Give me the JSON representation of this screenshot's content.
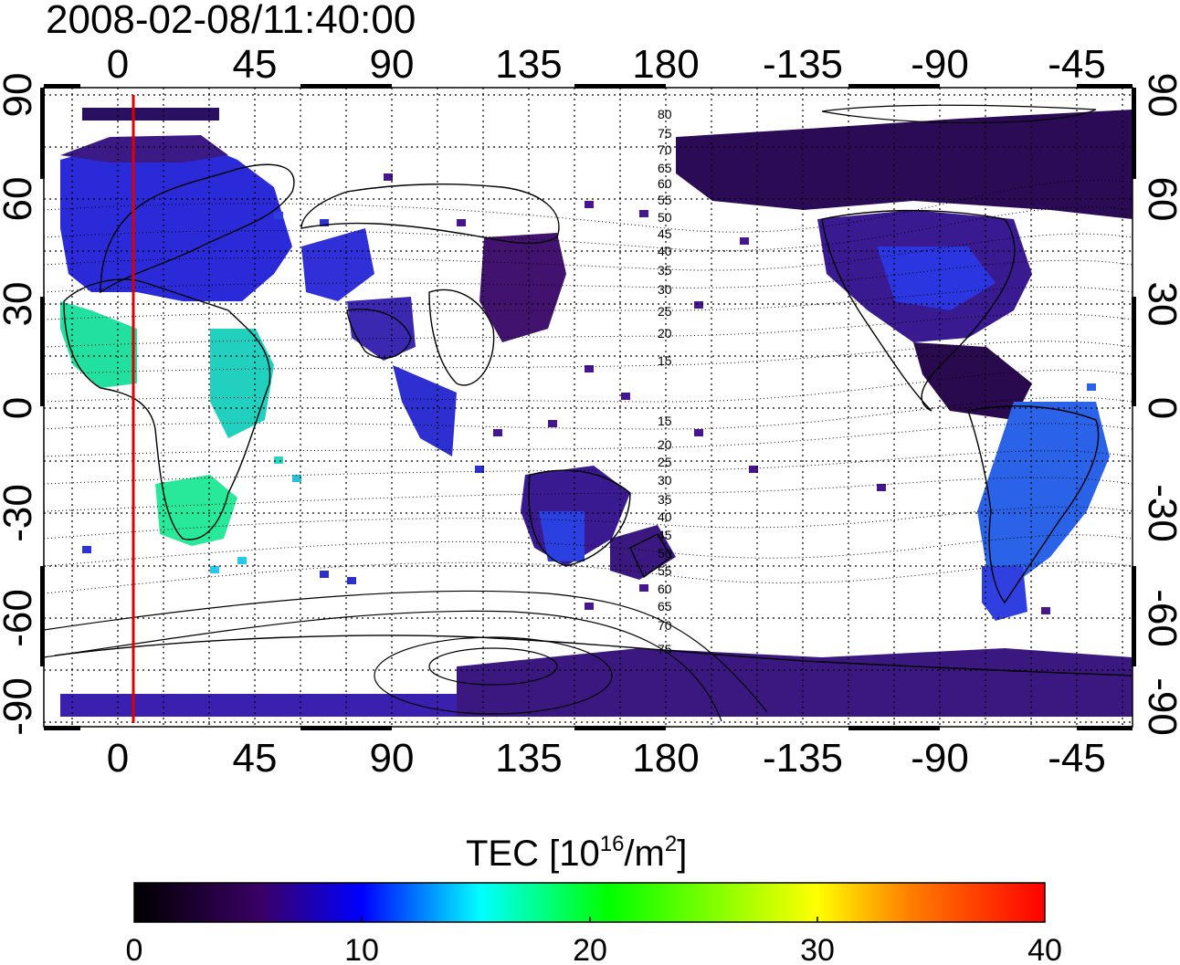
{
  "timestamp": "2008-02-08/11:40:00",
  "map": {
    "lon_ticks_top": [
      "0",
      "45",
      "90",
      "135",
      "180",
      "-135",
      "-90",
      "-45"
    ],
    "lon_ticks_bottom": [
      "0",
      "45",
      "90",
      "135",
      "180",
      "-135",
      "-90",
      "-45"
    ],
    "lat_ticks_left": [
      "90",
      "60",
      "30",
      "0",
      "-30",
      "-60",
      "-90"
    ],
    "lat_ticks_right": [
      "90",
      "60",
      "30",
      "0",
      "-30",
      "-60",
      "-90"
    ],
    "lon_range_deg": [
      -25,
      330
    ],
    "lat_range_deg": [
      -90,
      90
    ],
    "graticule_step_deg": 15,
    "terminator_lon_deg": 5,
    "terminator_color": "#e00000",
    "contour_labels": [
      "80",
      "75",
      "70",
      "65",
      "60",
      "55",
      "50",
      "45",
      "40",
      "35",
      "30",
      "25",
      "20",
      "15",
      "15",
      "20",
      "25",
      "30",
      "35",
      "40",
      "45",
      "50",
      "55",
      "60",
      "65",
      "70",
      "75"
    ]
  },
  "colorbar": {
    "label_main": "TEC  [10",
    "label_sup1": "16",
    "label_mid": "/m",
    "label_sup2": "2",
    "label_end": "]",
    "ticks": [
      "0",
      "10",
      "20",
      "30",
      "40"
    ],
    "range": [
      0,
      40
    ],
    "stops": [
      "#000000",
      "#3a0066",
      "#0000ff",
      "#00ffff",
      "#00ff00",
      "#ffff00",
      "#ff8000",
      "#ff0000"
    ]
  }
}
